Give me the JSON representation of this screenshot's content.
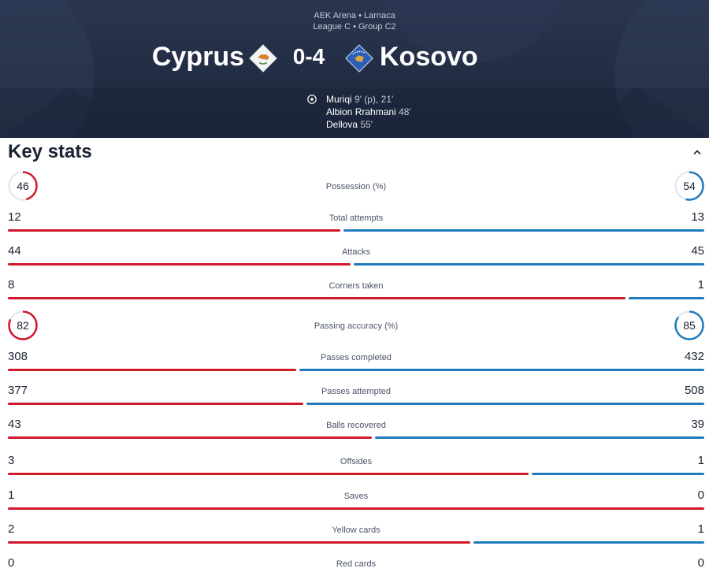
{
  "header": {
    "venue_line1": "AEK Arena • Larnaca",
    "venue_line2": "League C • Group C2",
    "home_team": "Cyprus",
    "away_team": "Kosovo",
    "score": "0-4",
    "scorers": [
      {
        "name": "Muriqi",
        "minutes": "9' (p), 21'"
      },
      {
        "name": "Albion Rrahmani",
        "minutes": "48'"
      },
      {
        "name": "Dellova",
        "minutes": "55'"
      }
    ]
  },
  "key_stats": {
    "title": "Key stats",
    "colors": {
      "home": "#d1182a",
      "away": "#1f7bbd"
    },
    "rings": [
      {
        "label": "Possession (%)",
        "home": "46",
        "away": "54"
      },
      {
        "label": "Passing accuracy (%)",
        "home": "82",
        "away": "85"
      }
    ],
    "stats": [
      {
        "label": "Total attempts",
        "home": "12",
        "away": "13"
      },
      {
        "label": "Attacks",
        "home": "44",
        "away": "45"
      },
      {
        "label": "Corners taken",
        "home": "8",
        "away": "1"
      },
      {
        "label": "Passes completed",
        "home": "308",
        "away": "432"
      },
      {
        "label": "Passes attempted",
        "home": "377",
        "away": "508"
      },
      {
        "label": "Balls recovered",
        "home": "43",
        "away": "39"
      },
      {
        "label": "Offsides",
        "home": "3",
        "away": "1"
      },
      {
        "label": "Saves",
        "home": "1",
        "away": "0"
      },
      {
        "label": "Yellow cards",
        "home": "2",
        "away": "1"
      },
      {
        "label": "Red cards",
        "home": "0",
        "away": "0"
      }
    ]
  }
}
